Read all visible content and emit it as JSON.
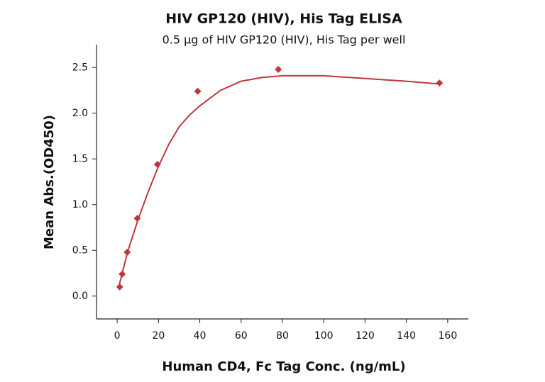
{
  "chart_data": {
    "type": "scatter",
    "title": "HIV GP120 (HIV), His Tag ELISA",
    "subtitle": "0.5 µg of HIV GP120 (HIV), His Tag per well",
    "x_label": "Human CD4, Fc Tag Conc. (ng/mL)",
    "y_label": "Mean Abs.(OD450)",
    "x": [
      1.22,
      2.44,
      4.88,
      9.75,
      19.5,
      39,
      78,
      156
    ],
    "values": [
      0.1,
      0.24,
      0.48,
      0.85,
      1.44,
      2.24,
      2.48,
      2.33
    ],
    "color": "#c0363a",
    "fit_curve": {
      "x": [
        1,
        5,
        10,
        15,
        20,
        25,
        30,
        35,
        40,
        50,
        60,
        70,
        80,
        100,
        120,
        140,
        156
      ],
      "values": [
        0.12,
        0.48,
        0.83,
        1.14,
        1.42,
        1.66,
        1.85,
        1.98,
        2.08,
        2.25,
        2.35,
        2.39,
        2.41,
        2.41,
        2.38,
        2.35,
        2.32
      ],
      "color": "#c0363a"
    },
    "xlim": [
      -10,
      170
    ],
    "xticks": [
      0,
      20,
      40,
      60,
      80,
      100,
      120,
      140,
      160
    ],
    "ylim": [
      -0.25,
      2.75
    ],
    "yticks": [
      {
        "value": 0,
        "label": "0.0"
      },
      0.5,
      {
        "value": 1,
        "label": "1.0"
      },
      1.5,
      {
        "value": 2,
        "label": "2.0"
      },
      2.5
    ]
  }
}
